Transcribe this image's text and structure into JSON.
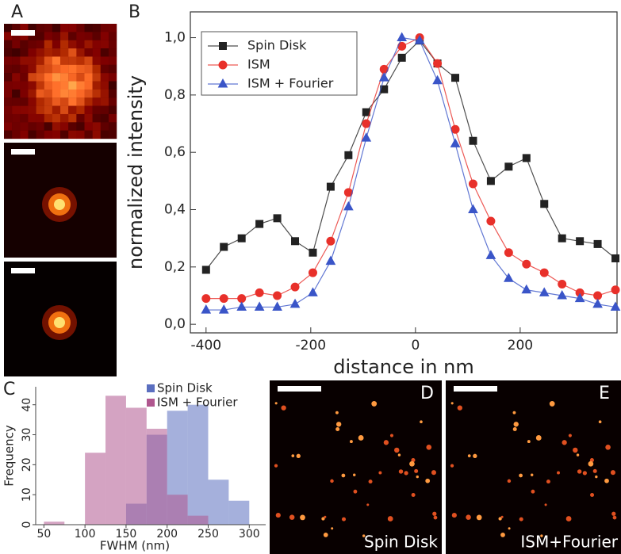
{
  "figure": {
    "panel_labels": [
      "A",
      "B",
      "C",
      "D",
      "E"
    ],
    "image_captions": [
      "Spin Disk",
      "ISM+Fourier"
    ]
  },
  "chart_data": [
    {
      "type": "line",
      "x_label": "distance in nm",
      "y_label": "normalized intensity",
      "x": [
        -400,
        -366,
        -332,
        -298,
        -264,
        -230,
        -196,
        -162,
        -128,
        -94,
        -60,
        -26,
        8,
        42,
        76,
        110,
        144,
        178,
        212,
        246,
        280,
        314,
        348,
        382
      ],
      "series": [
        {
          "name": "Spin Disk",
          "color": "#222222",
          "marker": "square",
          "values": [
            0.19,
            0.27,
            0.3,
            0.35,
            0.37,
            0.29,
            0.25,
            0.48,
            0.59,
            0.74,
            0.82,
            0.93,
            0.99,
            0.91,
            0.86,
            0.64,
            0.5,
            0.55,
            0.58,
            0.42,
            0.3,
            0.29,
            0.28,
            0.23
          ]
        },
        {
          "name": "ISM",
          "color": "#e8302a",
          "marker": "circle",
          "values": [
            0.09,
            0.09,
            0.09,
            0.11,
            0.1,
            0.13,
            0.18,
            0.29,
            0.46,
            0.7,
            0.89,
            0.97,
            1.0,
            0.91,
            0.68,
            0.49,
            0.36,
            0.25,
            0.21,
            0.18,
            0.14,
            0.11,
            0.1,
            0.12
          ]
        },
        {
          "name": "ISM + Fourier",
          "color": "#3a55c8",
          "marker": "triangle",
          "values": [
            0.05,
            0.05,
            0.06,
            0.06,
            0.06,
            0.07,
            0.11,
            0.22,
            0.41,
            0.65,
            0.86,
            1.0,
            0.99,
            0.85,
            0.63,
            0.4,
            0.24,
            0.16,
            0.12,
            0.11,
            0.1,
            0.09,
            0.07,
            0.06
          ]
        }
      ],
      "xlim": [
        -430,
        385
      ],
      "xticks": [
        -400,
        -200,
        0,
        200
      ],
      "ylim": [
        -0.03,
        1.09
      ],
      "yticks": [
        {
          "value": 0,
          "label": "0,0"
        },
        {
          "value": 0.2,
          "label": "0,2"
        },
        {
          "value": 0.4,
          "label": "0,4"
        },
        {
          "value": 0.6,
          "label": "0,6"
        },
        {
          "value": 0.8,
          "label": "0,8"
        },
        {
          "value": 1.0,
          "label": "1,0"
        }
      ],
      "legend": "top-left"
    },
    {
      "type": "histogram",
      "x_label": "FWHM (nm)",
      "y_label": "Frequency",
      "bins": [
        50,
        75,
        100,
        125,
        150,
        175,
        200,
        225,
        250,
        275,
        300
      ],
      "series": [
        {
          "name": "Spin Disk",
          "color": "#5b6fc0",
          "values": [
            0,
            0,
            0,
            0,
            7,
            30,
            38,
            40,
            15,
            8
          ]
        },
        {
          "name": "ISM + Fourier",
          "color": "#b0578f",
          "values": [
            1,
            0,
            24,
            43,
            39,
            32,
            10,
            3,
            0,
            0
          ]
        }
      ],
      "xlim": [
        40,
        320
      ],
      "xticks": [
        50,
        100,
        150,
        200,
        250,
        300
      ],
      "ylim": [
        0,
        46
      ],
      "yticks": [
        0,
        10,
        20,
        30,
        40
      ],
      "legend": "top-right"
    }
  ]
}
